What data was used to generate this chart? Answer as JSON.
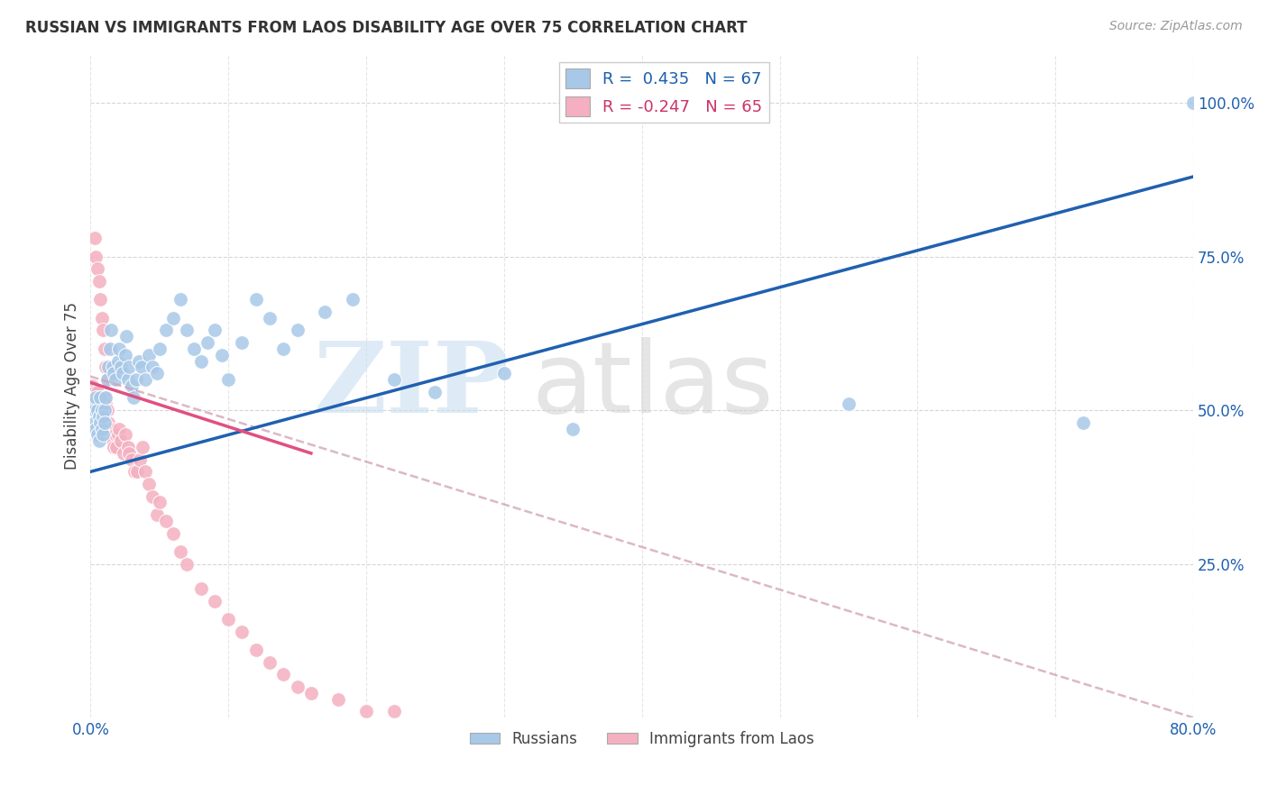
{
  "title": "RUSSIAN VS IMMIGRANTS FROM LAOS DISABILITY AGE OVER 75 CORRELATION CHART",
  "source": "Source: ZipAtlas.com",
  "ylabel": "Disability Age Over 75",
  "russian_R": 0.435,
  "russian_N": 67,
  "laos_R": -0.247,
  "laos_N": 65,
  "russian_color": "#a8c8e8",
  "laos_color": "#f4b0c0",
  "trend_russian_color": "#2060b0",
  "trend_laos_solid_color": "#e05080",
  "trend_laos_dash_color": "#d0a0b0",
  "watermark_zip_color": "#c8dff0",
  "watermark_atlas_color": "#d0d0d0",
  "xlim": [
    0,
    0.8
  ],
  "ylim_min": 0.0,
  "ylim_max": 1.08,
  "ytick_vals": [
    0.25,
    0.5,
    0.75,
    1.0
  ],
  "ytick_labels": [
    "25.0%",
    "50.0%",
    "75.0%",
    "100.0%"
  ],
  "xtick_vals": [
    0.0,
    0.1,
    0.2,
    0.3,
    0.4,
    0.5,
    0.6,
    0.7,
    0.8
  ],
  "xtick_labels": [
    "0.0%",
    "",
    "",
    "",
    "",
    "",
    "",
    "",
    "80.0%"
  ],
  "trend_rus_x0": 0.0,
  "trend_rus_y0": 0.4,
  "trend_rus_x1": 0.8,
  "trend_rus_y1": 0.88,
  "trend_laos_dash_x0": 0.0,
  "trend_laos_dash_y0": 0.555,
  "trend_laos_dash_x1": 0.8,
  "trend_laos_dash_y1": 0.0,
  "trend_laos_solid_x0": 0.0,
  "trend_laos_solid_y0": 0.545,
  "trend_laos_solid_x1": 0.16,
  "trend_laos_solid_y1": 0.43,
  "russians_x": [
    0.002,
    0.003,
    0.003,
    0.004,
    0.004,
    0.005,
    0.005,
    0.006,
    0.006,
    0.007,
    0.007,
    0.008,
    0.008,
    0.009,
    0.009,
    0.01,
    0.01,
    0.011,
    0.012,
    0.013,
    0.014,
    0.015,
    0.016,
    0.017,
    0.018,
    0.02,
    0.021,
    0.022,
    0.023,
    0.025,
    0.026,
    0.027,
    0.028,
    0.03,
    0.031,
    0.033,
    0.035,
    0.037,
    0.04,
    0.042,
    0.045,
    0.048,
    0.05,
    0.055,
    0.06,
    0.065,
    0.07,
    0.075,
    0.08,
    0.085,
    0.09,
    0.095,
    0.1,
    0.11,
    0.12,
    0.13,
    0.14,
    0.15,
    0.17,
    0.19,
    0.22,
    0.25,
    0.3,
    0.35,
    0.55,
    0.72,
    0.8
  ],
  "russians_y": [
    0.51,
    0.5,
    0.48,
    0.52,
    0.47,
    0.5,
    0.46,
    0.49,
    0.45,
    0.52,
    0.48,
    0.5,
    0.47,
    0.49,
    0.46,
    0.5,
    0.48,
    0.52,
    0.55,
    0.57,
    0.6,
    0.63,
    0.57,
    0.56,
    0.55,
    0.58,
    0.6,
    0.57,
    0.56,
    0.59,
    0.62,
    0.55,
    0.57,
    0.54,
    0.52,
    0.55,
    0.58,
    0.57,
    0.55,
    0.59,
    0.57,
    0.56,
    0.6,
    0.63,
    0.65,
    0.68,
    0.63,
    0.6,
    0.58,
    0.61,
    0.63,
    0.59,
    0.55,
    0.61,
    0.68,
    0.65,
    0.6,
    0.63,
    0.66,
    0.68,
    0.55,
    0.53,
    0.56,
    0.47,
    0.51,
    0.48,
    1.0
  ],
  "laos_x": [
    0.001,
    0.001,
    0.002,
    0.002,
    0.003,
    0.003,
    0.003,
    0.004,
    0.004,
    0.005,
    0.005,
    0.005,
    0.006,
    0.006,
    0.007,
    0.007,
    0.008,
    0.008,
    0.009,
    0.009,
    0.01,
    0.01,
    0.011,
    0.011,
    0.012,
    0.013,
    0.014,
    0.015,
    0.016,
    0.017,
    0.018,
    0.019,
    0.02,
    0.021,
    0.022,
    0.024,
    0.025,
    0.027,
    0.028,
    0.03,
    0.032,
    0.034,
    0.036,
    0.038,
    0.04,
    0.042,
    0.045,
    0.048,
    0.05,
    0.055,
    0.06,
    0.065,
    0.07,
    0.08,
    0.09,
    0.1,
    0.11,
    0.12,
    0.13,
    0.14,
    0.15,
    0.16,
    0.18,
    0.2,
    0.22
  ],
  "laos_y": [
    0.52,
    0.54,
    0.52,
    0.5,
    0.51,
    0.53,
    0.5,
    0.52,
    0.5,
    0.51,
    0.53,
    0.5,
    0.52,
    0.49,
    0.51,
    0.48,
    0.52,
    0.5,
    0.51,
    0.48,
    0.5,
    0.52,
    0.51,
    0.48,
    0.5,
    0.48,
    0.46,
    0.47,
    0.45,
    0.44,
    0.46,
    0.44,
    0.46,
    0.47,
    0.45,
    0.43,
    0.46,
    0.44,
    0.43,
    0.42,
    0.4,
    0.4,
    0.42,
    0.44,
    0.4,
    0.38,
    0.36,
    0.33,
    0.35,
    0.32,
    0.3,
    0.27,
    0.25,
    0.21,
    0.19,
    0.16,
    0.14,
    0.11,
    0.09,
    0.07,
    0.05,
    0.04,
    0.03,
    0.01,
    0.01
  ],
  "laos_outliers_x": [
    0.003,
    0.004,
    0.005,
    0.006,
    0.007,
    0.008,
    0.009,
    0.01,
    0.011,
    0.012
  ],
  "laos_outliers_y": [
    0.78,
    0.75,
    0.73,
    0.71,
    0.68,
    0.65,
    0.63,
    0.6,
    0.57,
    0.55
  ]
}
